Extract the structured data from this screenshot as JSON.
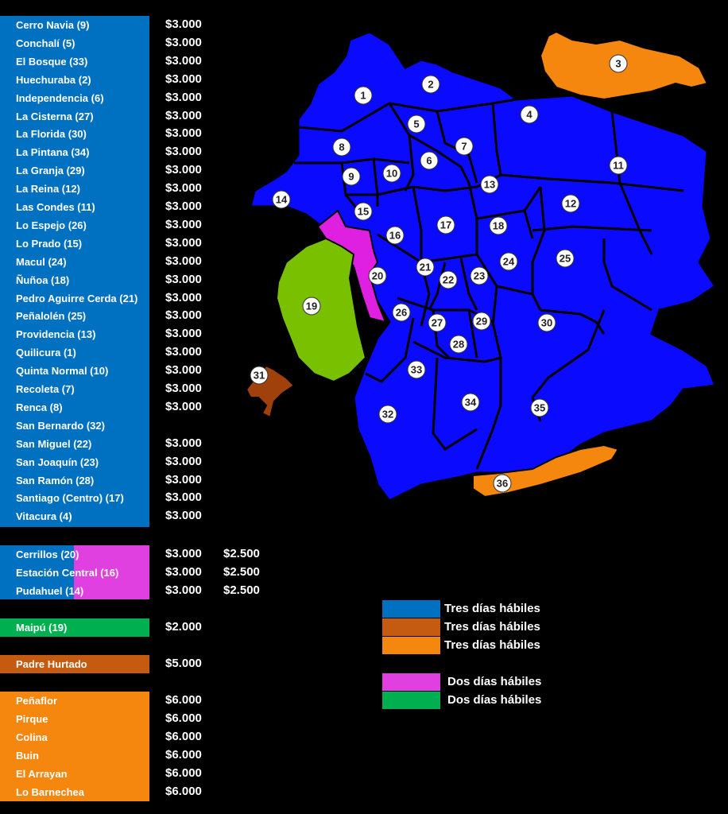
{
  "colors": {
    "blue_list": "#0070c0",
    "pink": "#e040e0",
    "green_list": "#00b050",
    "brown": "#c55a11",
    "orange": "#f5870f",
    "map_blue": "#0a0aff",
    "map_orange": "#f5870f",
    "map_pink": "#e020e0",
    "map_green": "#78c000",
    "map_brown": "#a0400a"
  },
  "group1": [
    {
      "name": "Cerro Navia (9)",
      "price": "$3.000"
    },
    {
      "name": "Conchalí (5)",
      "price": "$3.000"
    },
    {
      "name": "El Bosque (33)",
      "price": "$3.000"
    },
    {
      "name": "Huechuraba (2)",
      "price": "$3.000"
    },
    {
      "name": "Independencia (6)",
      "price": "$3.000"
    },
    {
      "name": "La Cisterna (27)",
      "price": "$3.000"
    },
    {
      "name": "La Florida (30)",
      "price": "$3.000"
    },
    {
      "name": "La Pintana (34)",
      "price": "$3.000"
    },
    {
      "name": "La Granja (29)",
      "price": "$3.000"
    },
    {
      "name": "La Reina (12)",
      "price": "$3.000"
    },
    {
      "name": "Las Condes (11)",
      "price": "$3.000"
    },
    {
      "name": "Lo Espejo (26)",
      "price": "$3.000"
    },
    {
      "name": "Lo Prado (15)",
      "price": "$3.000"
    },
    {
      "name": "Macul (24)",
      "price": "$3.000"
    },
    {
      "name": "Ñuñoa (18)",
      "price": "$3.000"
    },
    {
      "name": "Pedro Aguirre Cerda (21)",
      "price": "$3.000"
    },
    {
      "name": "Peñalolén (25)",
      "price": "$3.000"
    },
    {
      "name": "Providencia (13)",
      "price": "$3.000"
    },
    {
      "name": "Quilicura (1)",
      "price": "$3.000"
    },
    {
      "name": "Quinta Normal (10)",
      "price": "$3.000"
    },
    {
      "name": "Recoleta (7)",
      "price": "$3.000"
    },
    {
      "name": "Renca (8)",
      "price": "$3.000"
    },
    {
      "name": "San Bernardo (32)",
      "price": ""
    },
    {
      "name": "San Miguel (22)",
      "price": "$3.000"
    },
    {
      "name": "San Joaquín (23)",
      "price": "$3.000"
    },
    {
      "name": "San Ramón (28)",
      "price": "$3.000"
    },
    {
      "name": "Santiago (Centro) (17)",
      "price": "$3.000"
    },
    {
      "name": "Vitacura (4)",
      "price": "$3.000"
    }
  ],
  "group2": [
    {
      "name": "Cerrillos (20)",
      "price": "$3.000",
      "price2": "$2.500"
    },
    {
      "name": "Estación Central (16)",
      "price": "$3.000",
      "price2": "$2.500"
    },
    {
      "name": "Pudahuel (14)",
      "price": "$3.000",
      "price2": "$2.500"
    }
  ],
  "group3": [
    {
      "name": "Maipú (19)",
      "price": "$2.000"
    }
  ],
  "group4": [
    {
      "name": "Padre Hurtado",
      "price": "$5.000"
    }
  ],
  "group5": [
    {
      "name": "Peñaflor",
      "price": "$6.000"
    },
    {
      "name": "Pirque",
      "price": "$6.000"
    },
    {
      "name": "Colina",
      "price": "$6.000"
    },
    {
      "name": "Buin",
      "price": "$6.000"
    },
    {
      "name": "El Arrayan",
      "price": "$6.000"
    },
    {
      "name": "Lo Barnechea",
      "price": "$6.000"
    }
  ],
  "legend": [
    {
      "label": "Tres días hábiles",
      "color": "#0070c0"
    },
    {
      "label": "Tres días hábiles",
      "color": "#c55a11"
    },
    {
      "label": "Tres días hábiles",
      "color": "#f5870f"
    },
    {
      "label": "Dos días hábiles",
      "color": "#e040e0"
    },
    {
      "label": "Dos días hábiles",
      "color": "#00b050"
    }
  ],
  "map_numbers": [
    "1",
    "2",
    "3",
    "4",
    "5",
    "6",
    "7",
    "8",
    "9",
    "10",
    "11",
    "12",
    "13",
    "14",
    "15",
    "16",
    "17",
    "18",
    "19",
    "20",
    "21",
    "22",
    "23",
    "24",
    "25",
    "26",
    "27",
    "28",
    "29",
    "30",
    "31",
    "32",
    "33",
    "34",
    "35",
    "36"
  ]
}
